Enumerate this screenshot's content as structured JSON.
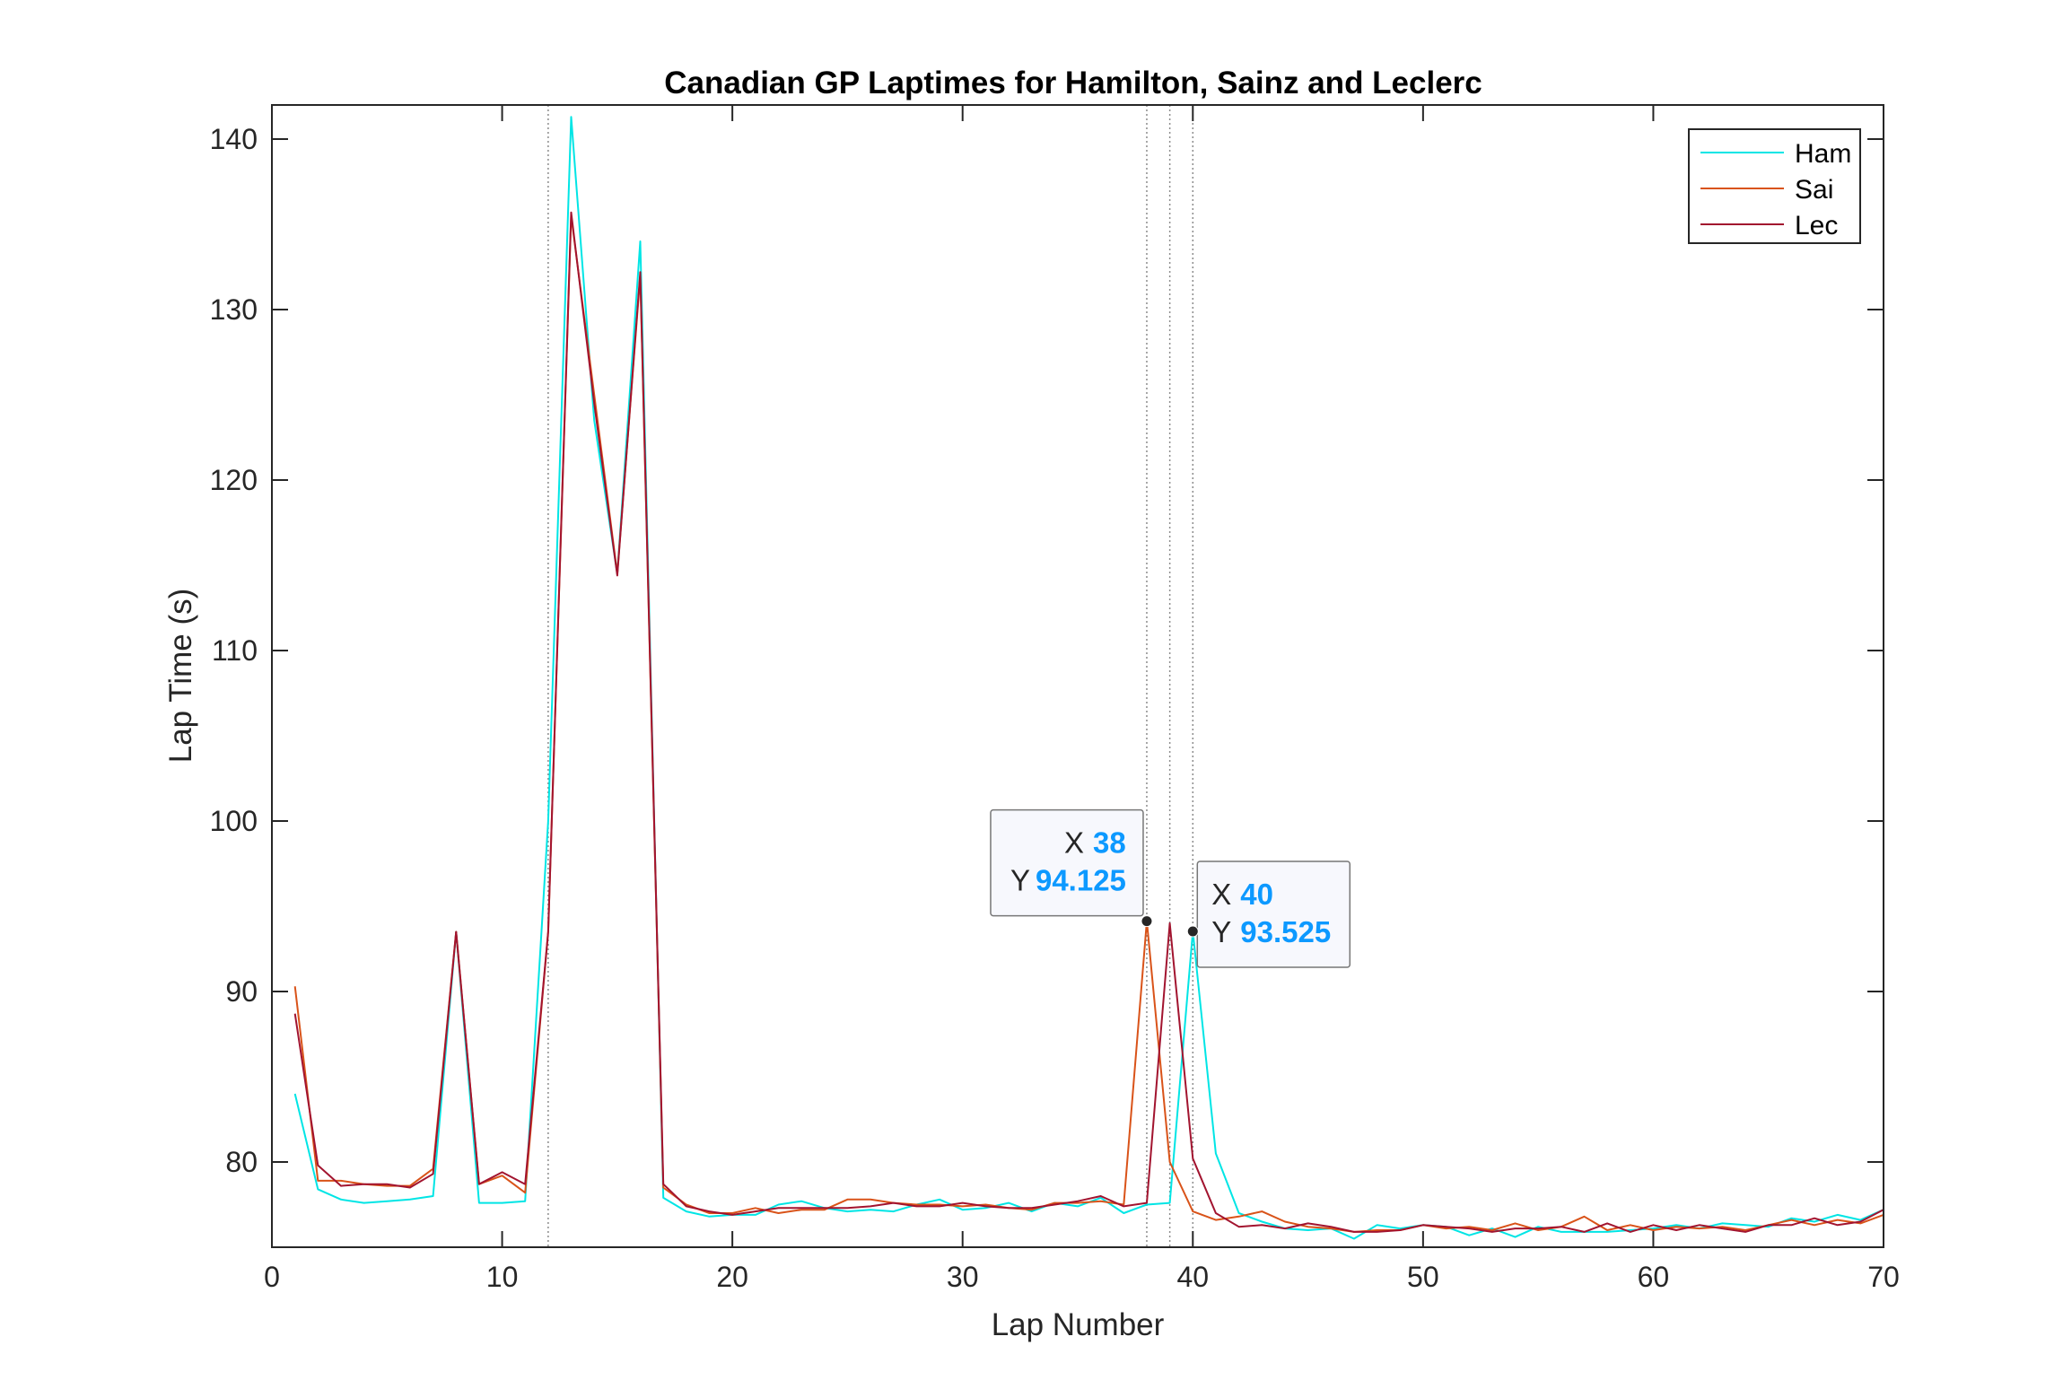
{
  "chart_data": {
    "type": "line",
    "title": "Canadian GP Laptimes for Hamilton, Sainz and Leclerc",
    "xlabel": "Lap Number",
    "ylabel": "Lap Time (s)",
    "xlim": [
      0,
      70
    ],
    "ylim": [
      75,
      142
    ],
    "xticks": [
      0,
      10,
      20,
      30,
      40,
      50,
      60,
      70
    ],
    "yticks": [
      80,
      90,
      100,
      110,
      120,
      130,
      140
    ],
    "grid": false,
    "legend_position": "top-right",
    "vertical_reference_lines": [
      12,
      38,
      39,
      40
    ],
    "x": [
      1,
      2,
      3,
      4,
      5,
      6,
      7,
      8,
      9,
      10,
      11,
      12,
      13,
      14,
      15,
      16,
      17,
      18,
      19,
      20,
      21,
      22,
      23,
      24,
      25,
      26,
      27,
      28,
      29,
      30,
      31,
      32,
      33,
      34,
      35,
      36,
      37,
      38,
      39,
      40,
      41,
      42,
      43,
      44,
      45,
      46,
      47,
      48,
      49,
      50,
      51,
      52,
      53,
      54,
      55,
      56,
      57,
      58,
      59,
      60,
      61,
      62,
      63,
      64,
      65,
      66,
      67,
      68,
      69,
      70
    ],
    "series": [
      {
        "name": "Ham",
        "color": "#00e5e5",
        "values": [
          84.0,
          78.4,
          77.8,
          77.6,
          77.7,
          77.8,
          78.0,
          93.5,
          77.6,
          77.6,
          77.7,
          100.0,
          141.3,
          123.5,
          114.5,
          134.0,
          77.9,
          77.1,
          76.8,
          76.9,
          76.9,
          77.5,
          77.7,
          77.3,
          77.1,
          77.2,
          77.1,
          77.5,
          77.8,
          77.2,
          77.3,
          77.6,
          77.1,
          77.6,
          77.4,
          77.9,
          77.0,
          77.5,
          77.6,
          93.525,
          80.5,
          77.0,
          76.5,
          76.1,
          76.0,
          76.1,
          75.5,
          76.3,
          76.1,
          76.3,
          76.2,
          75.7,
          76.1,
          75.6,
          76.2,
          75.9,
          75.9,
          75.9,
          76.0,
          76.1,
          76.3,
          76.1,
          76.4,
          76.3,
          76.2,
          76.7,
          76.5,
          76.9,
          76.6,
          77.2
        ]
      },
      {
        "name": "Sai",
        "color": "#d95319",
        "values": [
          90.3,
          78.9,
          78.9,
          78.7,
          78.6,
          78.6,
          79.6,
          93.5,
          78.7,
          79.2,
          78.2,
          93.5,
          135.5,
          125.0,
          114.5,
          132.0,
          78.5,
          77.5,
          77.0,
          77.0,
          77.3,
          77.0,
          77.2,
          77.2,
          77.8,
          77.8,
          77.6,
          77.5,
          77.5,
          77.4,
          77.5,
          77.3,
          77.2,
          77.6,
          77.6,
          77.7,
          77.5,
          94.125,
          80.0,
          77.1,
          76.6,
          76.8,
          77.1,
          76.5,
          76.2,
          76.1,
          75.9,
          76.0,
          76.0,
          76.3,
          76.1,
          76.2,
          76.0,
          76.4,
          76.0,
          76.2,
          76.8,
          76.0,
          76.3,
          76.0,
          76.2,
          76.1,
          76.2,
          76.0,
          76.3,
          76.6,
          76.3,
          76.6,
          76.4,
          76.9
        ]
      },
      {
        "name": "Lec",
        "color": "#a2142f",
        "values": [
          88.7,
          79.8,
          78.6,
          78.7,
          78.7,
          78.5,
          79.3,
          93.5,
          78.7,
          79.4,
          78.7,
          93.5,
          135.7,
          124.5,
          114.4,
          132.2,
          78.7,
          77.4,
          77.1,
          76.9,
          77.1,
          77.3,
          77.3,
          77.3,
          77.3,
          77.4,
          77.6,
          77.4,
          77.4,
          77.6,
          77.4,
          77.3,
          77.3,
          77.5,
          77.7,
          78.0,
          77.4,
          77.6,
          94.0,
          80.2,
          77.0,
          76.2,
          76.3,
          76.1,
          76.4,
          76.2,
          75.9,
          75.9,
          76.0,
          76.3,
          76.2,
          76.1,
          75.9,
          76.1,
          76.1,
          76.2,
          75.9,
          76.4,
          75.9,
          76.3,
          76.0,
          76.3,
          76.1,
          75.9,
          76.3,
          76.3,
          76.7,
          76.3,
          76.5,
          77.2
        ]
      }
    ],
    "data_tips": [
      {
        "x_key": "X",
        "x_value": "38",
        "y_key": "Y",
        "y_value": "94.125",
        "x": 38,
        "y": 94.125,
        "placement": "left"
      },
      {
        "x_key": "X",
        "x_value": "40",
        "y_key": "Y",
        "y_value": "93.525",
        "x": 40,
        "y": 93.525,
        "placement": "right"
      }
    ]
  }
}
